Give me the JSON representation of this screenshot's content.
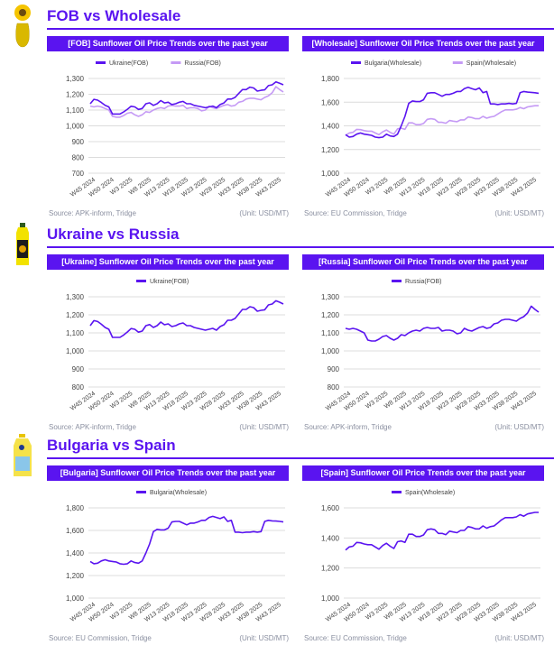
{
  "colors": {
    "accent": "#5a14f0",
    "primary_series": "#5a14f0",
    "secondary_series": "#c59af5",
    "grid": "#dcdcdc"
  },
  "sections": [
    {
      "title": "FOB vs Wholesale",
      "icon": "sunflower-oil-jar-icon"
    },
    {
      "title": "Ukraine vs Russia",
      "icon": "oil-bottle-icon"
    },
    {
      "title": "Bulgaria vs Spain",
      "icon": "oil-jug-icon"
    }
  ],
  "x_labels": [
    "W45 2024",
    "W50 2024",
    "W3 2025",
    "W8 2025",
    "W13 2025",
    "W18 2025",
    "W23 2025",
    "W28 2025",
    "W33 2025",
    "W38 2025",
    "W43 2025"
  ],
  "chart_data": [
    {
      "type": "line",
      "title": "[FOB] Sunflower Oil Price Trends over the past year",
      "source": "Source: APK-inform, Tridge",
      "unit": "(Unit: USD/MT)",
      "ylim": [
        700,
        1300
      ],
      "yticks": [
        "1,300",
        "1,200",
        "1,100",
        "1,000",
        "900",
        "800",
        "700"
      ],
      "ytick_values": [
        1300,
        1200,
        1100,
        1000,
        900,
        800,
        700
      ],
      "series": [
        {
          "name": "Ukraine(FOB)",
          "color": "#5a14f0",
          "values": [
            1140,
            1168,
            1163,
            1148,
            1130,
            1120,
            1075,
            1075,
            1075,
            1088,
            1105,
            1124,
            1120,
            1104,
            1110,
            1140,
            1146,
            1130,
            1140,
            1160,
            1145,
            1150,
            1135,
            1140,
            1150,
            1155,
            1140,
            1140,
            1130,
            1125,
            1120,
            1115,
            1120,
            1125,
            1115,
            1135,
            1145,
            1170,
            1170,
            1180,
            1205,
            1230,
            1230,
            1245,
            1240,
            1220,
            1225,
            1228,
            1255,
            1260,
            1278,
            1270,
            1260
          ]
        },
        {
          "name": "Russia(FOB)",
          "color": "#c59af5",
          "values": [
            1125,
            1120,
            1125,
            1120,
            1110,
            1100,
            1060,
            1055,
            1055,
            1065,
            1080,
            1085,
            1070,
            1060,
            1070,
            1090,
            1085,
            1100,
            1110,
            1115,
            1110,
            1125,
            1130,
            1125,
            1125,
            1130,
            1110,
            1115,
            1115,
            1110,
            1095,
            1100,
            1125,
            1115,
            1110,
            1120,
            1130,
            1135,
            1125,
            1130,
            1150,
            1155,
            1170,
            1175,
            1175,
            1170,
            1165,
            1180,
            1190,
            1210,
            1248,
            1230,
            1215
          ]
        }
      ]
    },
    {
      "type": "line",
      "title": "[Wholesale] Sunflower Oil Price Trends over the past year",
      "source": "Source: EU Commission, Tridge",
      "unit": "(Unit: USD/MT)",
      "ylim": [
        1000,
        1800
      ],
      "yticks": [
        "1,800",
        "1,600",
        "1,400",
        "1,200",
        "1,000"
      ],
      "ytick_values": [
        1800,
        1600,
        1400,
        1200,
        1000
      ],
      "series": [
        {
          "name": "Bulgaria(Wholesale)",
          "color": "#5a14f0",
          "values": [
            1325,
            1305,
            1310,
            1330,
            1340,
            1330,
            1325,
            1320,
            1305,
            1300,
            1305,
            1330,
            1315,
            1310,
            1330,
            1400,
            1480,
            1590,
            1610,
            1605,
            1605,
            1620,
            1675,
            1680,
            1680,
            1665,
            1650,
            1665,
            1665,
            1675,
            1690,
            1690,
            1715,
            1725,
            1715,
            1705,
            1720,
            1680,
            1690,
            1585,
            1585,
            1580,
            1585,
            1585,
            1590,
            1585,
            1590,
            1680,
            1690,
            1685,
            1683,
            1680,
            1675
          ]
        },
        {
          "name": "Spain(Wholesale)",
          "color": "#c59af5",
          "values": [
            1320,
            1340,
            1345,
            1370,
            1368,
            1360,
            1355,
            1355,
            1340,
            1325,
            1350,
            1365,
            1345,
            1330,
            1375,
            1380,
            1370,
            1425,
            1425,
            1410,
            1410,
            1420,
            1455,
            1460,
            1455,
            1430,
            1430,
            1422,
            1445,
            1440,
            1435,
            1450,
            1450,
            1475,
            1470,
            1460,
            1460,
            1480,
            1465,
            1475,
            1480,
            1500,
            1520,
            1535,
            1535,
            1535,
            1540,
            1555,
            1545,
            1560,
            1565,
            1570,
            1570
          ]
        }
      ]
    },
    {
      "type": "line",
      "title": "[Ukraine] Sunflower Oil Price Trends over the past year",
      "source": "Source: APK-inform, Tridge",
      "unit": "(Unit: USD/MT)",
      "ylim": [
        800,
        1300
      ],
      "yticks": [
        "1,300",
        "1,200",
        "1,100",
        "1,000",
        "900",
        "800"
      ],
      "ytick_values": [
        1300,
        1200,
        1100,
        1000,
        900,
        800
      ],
      "series": [
        {
          "name": "Ukraine(FOB)",
          "color": "#5a14f0",
          "values": [
            1140,
            1168,
            1163,
            1148,
            1130,
            1120,
            1075,
            1075,
            1075,
            1088,
            1105,
            1124,
            1120,
            1104,
            1110,
            1140,
            1146,
            1130,
            1140,
            1160,
            1145,
            1150,
            1135,
            1140,
            1150,
            1155,
            1140,
            1140,
            1130,
            1125,
            1120,
            1115,
            1120,
            1125,
            1115,
            1135,
            1145,
            1170,
            1170,
            1180,
            1205,
            1230,
            1230,
            1245,
            1240,
            1220,
            1225,
            1228,
            1255,
            1260,
            1278,
            1270,
            1260
          ]
        }
      ]
    },
    {
      "type": "line",
      "title": "[Russia] Sunflower Oil Price Trends over the past year",
      "source": "Source: APK-inform, Tridge",
      "unit": "(Unit: USD/MT)",
      "ylim": [
        800,
        1300
      ],
      "yticks": [
        "1,300",
        "1,200",
        "1,100",
        "1,000",
        "900",
        "800"
      ],
      "ytick_values": [
        1300,
        1200,
        1100,
        1000,
        900,
        800
      ],
      "series": [
        {
          "name": "Russia(FOB)",
          "color": "#5a14f0",
          "values": [
            1125,
            1120,
            1125,
            1120,
            1110,
            1100,
            1060,
            1055,
            1055,
            1065,
            1080,
            1085,
            1070,
            1060,
            1070,
            1090,
            1085,
            1100,
            1110,
            1115,
            1110,
            1125,
            1130,
            1125,
            1125,
            1130,
            1110,
            1115,
            1115,
            1110,
            1095,
            1100,
            1125,
            1115,
            1110,
            1120,
            1130,
            1135,
            1125,
            1130,
            1150,
            1155,
            1170,
            1175,
            1175,
            1170,
            1165,
            1180,
            1190,
            1210,
            1248,
            1230,
            1215
          ]
        }
      ]
    },
    {
      "type": "line",
      "title": "[Bulgaria] Sunflower Oil Price Trends over the past year",
      "source": "Source: EU Commission, Tridge",
      "unit": "(Unit: USD/MT)",
      "ylim": [
        1000,
        1800
      ],
      "yticks": [
        "1,800",
        "1,600",
        "1,400",
        "1,200",
        "1,000"
      ],
      "ytick_values": [
        1800,
        1600,
        1400,
        1200,
        1000
      ],
      "series": [
        {
          "name": "Bulgaria(Wholesale)",
          "color": "#5a14f0",
          "values": [
            1325,
            1305,
            1310,
            1330,
            1340,
            1330,
            1325,
            1320,
            1305,
            1300,
            1305,
            1330,
            1315,
            1310,
            1330,
            1400,
            1480,
            1590,
            1610,
            1605,
            1605,
            1620,
            1675,
            1680,
            1680,
            1665,
            1650,
            1665,
            1665,
            1675,
            1690,
            1690,
            1715,
            1725,
            1715,
            1705,
            1720,
            1680,
            1690,
            1585,
            1585,
            1580,
            1585,
            1585,
            1590,
            1585,
            1590,
            1680,
            1690,
            1685,
            1683,
            1680,
            1675
          ]
        }
      ]
    },
    {
      "type": "line",
      "title": "[Spain] Sunflower Oil Price Trends over the past year",
      "source": "Source: EU Commission, Tridge",
      "unit": "(Unit: USD/MT)",
      "ylim": [
        1000,
        1600
      ],
      "yticks": [
        "1,600",
        "1,400",
        "1,200",
        "1,000"
      ],
      "ytick_values": [
        1600,
        1400,
        1200,
        1000
      ],
      "series": [
        {
          "name": "Spain(Wholesale)",
          "color": "#5a14f0",
          "values": [
            1320,
            1340,
            1345,
            1370,
            1368,
            1360,
            1355,
            1355,
            1340,
            1325,
            1350,
            1365,
            1345,
            1330,
            1375,
            1380,
            1370,
            1425,
            1425,
            1410,
            1410,
            1420,
            1455,
            1460,
            1455,
            1430,
            1430,
            1422,
            1445,
            1440,
            1435,
            1450,
            1450,
            1475,
            1470,
            1460,
            1460,
            1480,
            1465,
            1475,
            1480,
            1500,
            1520,
            1535,
            1535,
            1535,
            1540,
            1555,
            1545,
            1560,
            1565,
            1570,
            1570
          ]
        }
      ]
    }
  ]
}
